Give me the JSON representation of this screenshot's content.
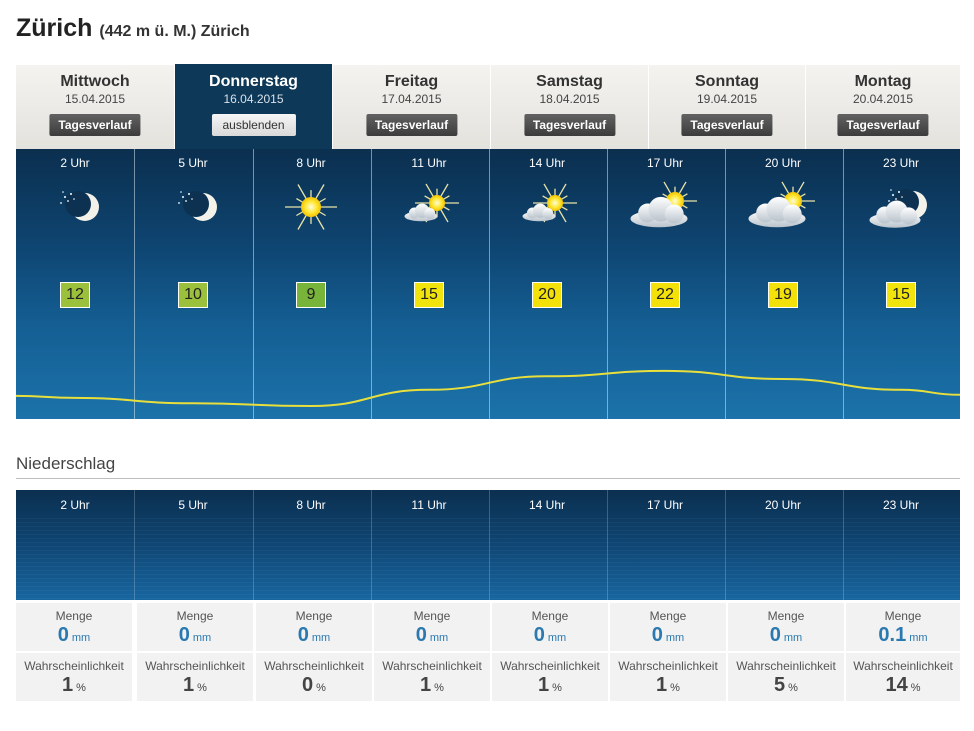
{
  "location": {
    "city": "Zürich",
    "detail": "(442 m ü. M.) Zürich"
  },
  "tabs": [
    {
      "day": "Mittwoch",
      "date": "15.04.2015",
      "button": "Tagesverlauf",
      "active": false
    },
    {
      "day": "Donnerstag",
      "date": "16.04.2015",
      "button": "ausblenden",
      "active": true
    },
    {
      "day": "Freitag",
      "date": "17.04.2015",
      "button": "Tagesverlauf",
      "active": false
    },
    {
      "day": "Samstag",
      "date": "18.04.2015",
      "button": "Tagesverlauf",
      "active": false
    },
    {
      "day": "Sonntag",
      "date": "19.04.2015",
      "button": "Tagesverlauf",
      "active": false
    },
    {
      "day": "Montag",
      "date": "20.04.2015",
      "button": "Tagesverlauf",
      "active": false
    }
  ],
  "hours": [
    {
      "label": "2 Uhr",
      "icon": "moon-clear-icon",
      "temp": "12",
      "badge_color": "#9bc13c"
    },
    {
      "label": "5 Uhr",
      "icon": "moon-clear-icon",
      "temp": "10",
      "badge_color": "#9bc13c"
    },
    {
      "label": "8 Uhr",
      "icon": "sun-icon",
      "temp": "9",
      "badge_color": "#78b33a"
    },
    {
      "label": "11 Uhr",
      "icon": "sun-small-cloud-icon",
      "temp": "15",
      "badge_color": "#f1e30c"
    },
    {
      "label": "14 Uhr",
      "icon": "sun-small-cloud-icon",
      "temp": "20",
      "badge_color": "#f4e10a"
    },
    {
      "label": "17 Uhr",
      "icon": "sun-cloud-icon",
      "temp": "22",
      "badge_color": "#f4e10a"
    },
    {
      "label": "20 Uhr",
      "icon": "sun-cloud-icon",
      "temp": "19",
      "badge_color": "#f4e10a"
    },
    {
      "label": "23 Uhr",
      "icon": "moon-cloud-icon",
      "temp": "15",
      "badge_color": "#f1e30c"
    }
  ],
  "precipitation": {
    "title": "Niederschlag",
    "amount_label": "Menge",
    "amount_unit": "mm",
    "prob_label": "Wahrscheinlichkeit",
    "prob_unit": "%",
    "amounts": [
      "0",
      "0",
      "0",
      "0",
      "0",
      "0",
      "0",
      "0.1"
    ],
    "probabilities": [
      "1",
      "1",
      "0",
      "1",
      "1",
      "1",
      "5",
      "14"
    ]
  },
  "colors": {
    "panel_dark": "#0b2f4f",
    "panel_light": "#1b73aa",
    "active_tab": "#0e3858",
    "temp_line": "#e9df3c",
    "amount_text": "#2a79b0"
  }
}
